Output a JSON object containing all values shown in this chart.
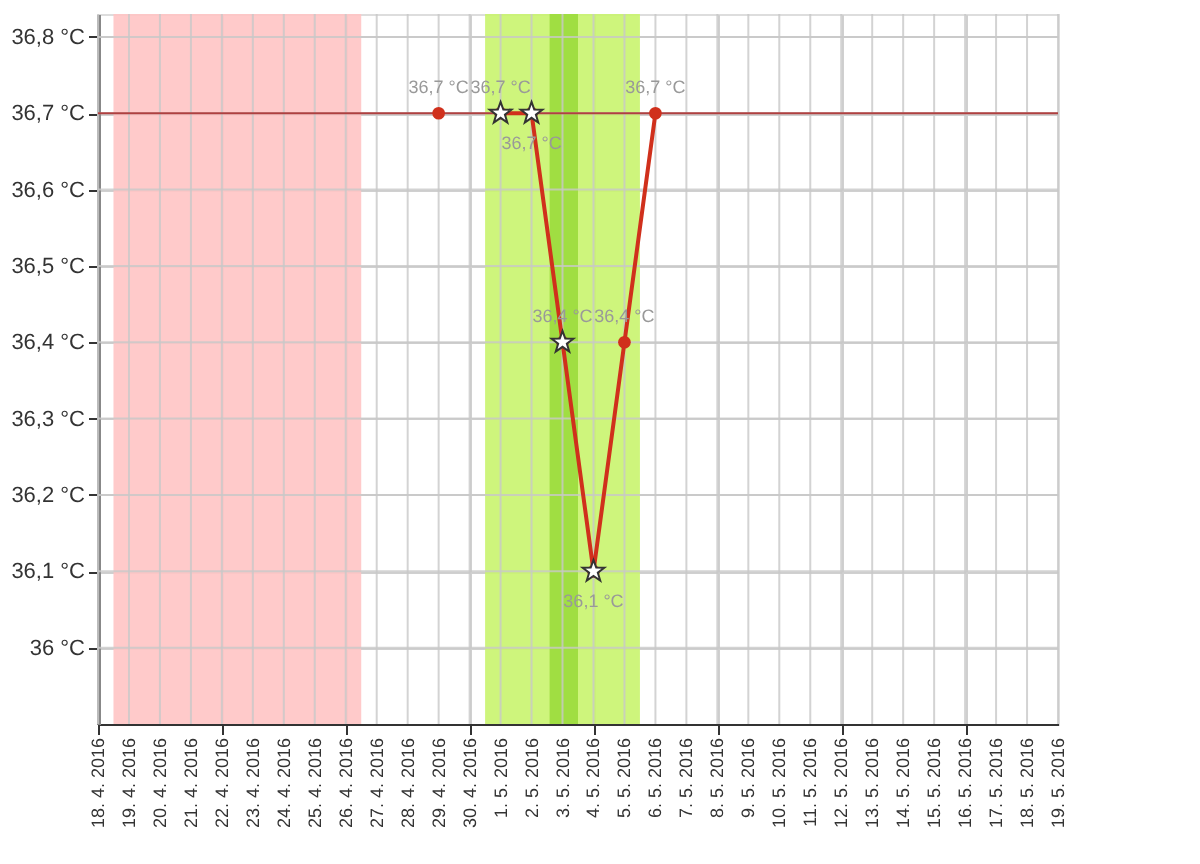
{
  "chart_data": {
    "type": "line",
    "xlim": [
      "2016-04-18",
      "2016-05-19"
    ],
    "xticks": [
      {
        "value": "2016-04-18",
        "label": "18. 4. 2016"
      },
      {
        "value": "2016-04-19",
        "label": "19. 4. 2016"
      },
      {
        "value": "2016-04-20",
        "label": "20. 4. 2016"
      },
      {
        "value": "2016-04-21",
        "label": "21. 4. 2016"
      },
      {
        "value": "2016-04-22",
        "label": "22. 4. 2016"
      },
      {
        "value": "2016-04-23",
        "label": "23. 4. 2016"
      },
      {
        "value": "2016-04-24",
        "label": "24. 4. 2016"
      },
      {
        "value": "2016-04-25",
        "label": "25. 4. 2016"
      },
      {
        "value": "2016-04-26",
        "label": "26. 4. 2016"
      },
      {
        "value": "2016-04-27",
        "label": "27. 4. 2016"
      },
      {
        "value": "2016-04-28",
        "label": "28. 4. 2016"
      },
      {
        "value": "2016-04-29",
        "label": "29. 4. 2016"
      },
      {
        "value": "2016-04-30",
        "label": "30. 4. 2016"
      },
      {
        "value": "2016-05-01",
        "label": "1. 5. 2016"
      },
      {
        "value": "2016-05-02",
        "label": "2. 5. 2016"
      },
      {
        "value": "2016-05-03",
        "label": "3. 5. 2016"
      },
      {
        "value": "2016-05-04",
        "label": "4. 5. 2016"
      },
      {
        "value": "2016-05-05",
        "label": "5. 5. 2016"
      },
      {
        "value": "2016-05-06",
        "label": "6. 5. 2016"
      },
      {
        "value": "2016-05-07",
        "label": "7. 5. 2016"
      },
      {
        "value": "2016-05-08",
        "label": "8. 5. 2016"
      },
      {
        "value": "2016-05-09",
        "label": "9. 5. 2016"
      },
      {
        "value": "2016-05-10",
        "label": "10. 5. 2016"
      },
      {
        "value": "2016-05-11",
        "label": "11. 5. 2016"
      },
      {
        "value": "2016-05-12",
        "label": "12. 5. 2016"
      },
      {
        "value": "2016-05-13",
        "label": "13. 5. 2016"
      },
      {
        "value": "2016-05-14",
        "label": "14. 5. 2016"
      },
      {
        "value": "2016-05-15",
        "label": "15. 5. 2016"
      },
      {
        "value": "2016-05-16",
        "label": "16. 5. 2016"
      },
      {
        "value": "2016-05-17",
        "label": "17. 5. 2016"
      },
      {
        "value": "2016-05-18",
        "label": "18. 5. 2016"
      },
      {
        "value": "2016-05-19",
        "label": "19. 5. 2016"
      }
    ],
    "ylim": [
      35.9,
      36.83
    ],
    "yticks": [
      {
        "value": 36.0,
        "label": "36 °C"
      },
      {
        "value": 36.1,
        "label": "36,1 °C"
      },
      {
        "value": 36.2,
        "label": "36,2 °C"
      },
      {
        "value": 36.3,
        "label": "36,3 °C"
      },
      {
        "value": 36.4,
        "label": "36,4 °C"
      },
      {
        "value": 36.5,
        "label": "36,5 °C"
      },
      {
        "value": 36.6,
        "label": "36,6 °C"
      },
      {
        "value": 36.7,
        "label": "36,7 °C"
      },
      {
        "value": 36.8,
        "label": "36,8 °C"
      }
    ],
    "grid": true,
    "bands": [
      {
        "axis": "x",
        "from": "2016-04-18T12:00",
        "to": "2016-04-26T12:00",
        "color": "#ffc4c4"
      },
      {
        "axis": "x",
        "from": "2016-04-30T12:00",
        "to": "2016-05-05T12:00",
        "color": "#c9f46e"
      },
      {
        "axis": "x",
        "from": "2016-05-02T14:00",
        "to": "2016-05-03T12:00",
        "color": "#9bdc3c"
      }
    ],
    "ref_lines": [
      {
        "axis": "y",
        "value": 36.7,
        "color": "#b04040"
      }
    ],
    "series": [
      {
        "color": "#d0301c",
        "marker": "circle",
        "x": [
          "2016-04-29",
          "2016-04-30",
          "2016-05-01",
          "2016-05-02",
          "2016-05-03",
          "2016-05-04",
          "2016-05-05",
          "2016-05-06"
        ],
        "values": [
          36.7,
          null,
          36.7,
          36.7,
          36.4,
          36.1,
          36.4,
          36.7
        ],
        "value_labels": [
          "36,7 °C",
          null,
          "36,7 °C",
          "36,7 °C",
          "36,4 °C",
          "36,1 °C",
          "36,4 °C",
          "36,7 °C"
        ]
      },
      {
        "type": "scatter",
        "color": "#ffffff",
        "marker": "star",
        "x": [
          "2016-05-01",
          "2016-05-02",
          "2016-05-03",
          "2016-05-04"
        ],
        "values": [
          36.7,
          36.7,
          36.4,
          36.1
        ]
      }
    ]
  }
}
